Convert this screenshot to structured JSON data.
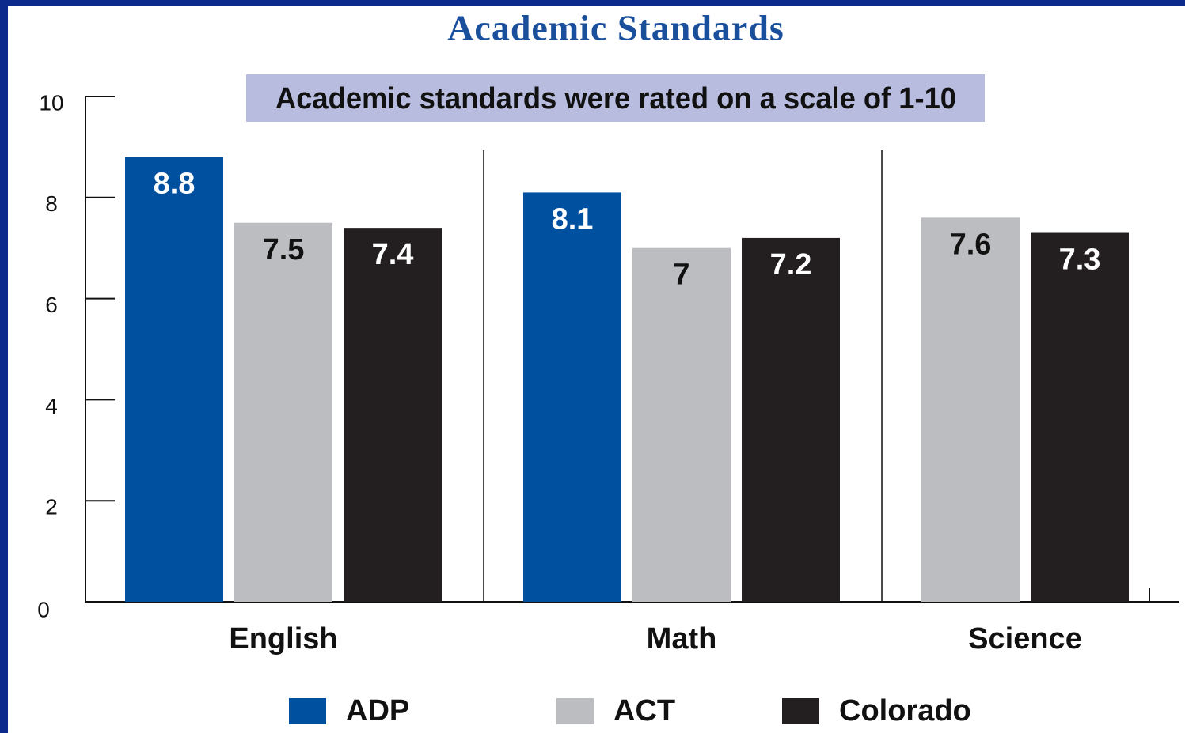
{
  "chart_data": {
    "type": "bar",
    "title": "Academic Standards",
    "annotation": "Academic standards were rated on a scale of 1-10",
    "categories": [
      "English",
      "Math",
      "Science"
    ],
    "series": [
      {
        "name": "ADP",
        "color": "#0050a0",
        "values": [
          8.8,
          8.1,
          null
        ]
      },
      {
        "name": "ACT",
        "color": "#bcbdc0",
        "values": [
          7.5,
          7,
          7.6
        ]
      },
      {
        "name": "Colorado",
        "color": "#231f20",
        "values": [
          7.4,
          7.2,
          7.3
        ]
      }
    ],
    "ylim": [
      0,
      10
    ],
    "yticks": [
      0,
      2,
      4,
      6,
      8,
      10
    ],
    "grid": false
  }
}
